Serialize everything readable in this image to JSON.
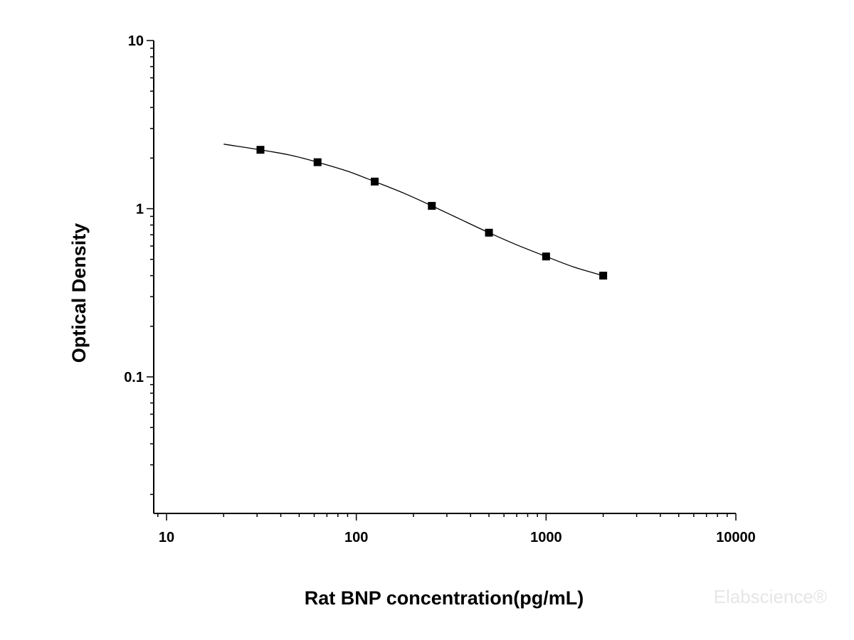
{
  "chart_data": {
    "type": "scatter",
    "xlabel": "Rat BNP concentration(pg/mL)",
    "ylabel": "Optical Density",
    "xscale": "log",
    "yscale": "log",
    "xlim": [
      8.5,
      10000
    ],
    "ylim": [
      0.016,
      10
    ],
    "x_ticks": [
      {
        "value": 10,
        "label": "10"
      },
      {
        "value": 100,
        "label": "100"
      },
      {
        "value": 1000,
        "label": "1000"
      },
      {
        "value": 10000,
        "label": "10000"
      }
    ],
    "y_ticks": [
      {
        "value": 10,
        "label": "10"
      },
      {
        "value": 1,
        "label": "1"
      },
      {
        "value": 0.1,
        "label": "0.1"
      }
    ],
    "grid": false,
    "legend": "none",
    "series": [
      {
        "marker": "square",
        "color": "#000000",
        "points": [
          {
            "x": 31.25,
            "y": 2.24
          },
          {
            "x": 62.5,
            "y": 1.89
          },
          {
            "x": 125,
            "y": 1.45
          },
          {
            "x": 250,
            "y": 1.04
          },
          {
            "x": 500,
            "y": 0.72
          },
          {
            "x": 1000,
            "y": 0.52
          },
          {
            "x": 2000,
            "y": 0.4
          }
        ]
      }
    ],
    "fit_curve": {
      "color": "#000000",
      "points": [
        {
          "x": 20,
          "y": 2.42
        },
        {
          "x": 31.25,
          "y": 2.24
        },
        {
          "x": 45,
          "y": 2.08
        },
        {
          "x": 62.5,
          "y": 1.89
        },
        {
          "x": 90,
          "y": 1.67
        },
        {
          "x": 125,
          "y": 1.45
        },
        {
          "x": 180,
          "y": 1.23
        },
        {
          "x": 250,
          "y": 1.04
        },
        {
          "x": 350,
          "y": 0.87
        },
        {
          "x": 500,
          "y": 0.72
        },
        {
          "x": 700,
          "y": 0.61
        },
        {
          "x": 1000,
          "y": 0.52
        },
        {
          "x": 1400,
          "y": 0.45
        },
        {
          "x": 2000,
          "y": 0.4
        }
      ]
    }
  },
  "watermark": {
    "text": "Elabscience®"
  }
}
